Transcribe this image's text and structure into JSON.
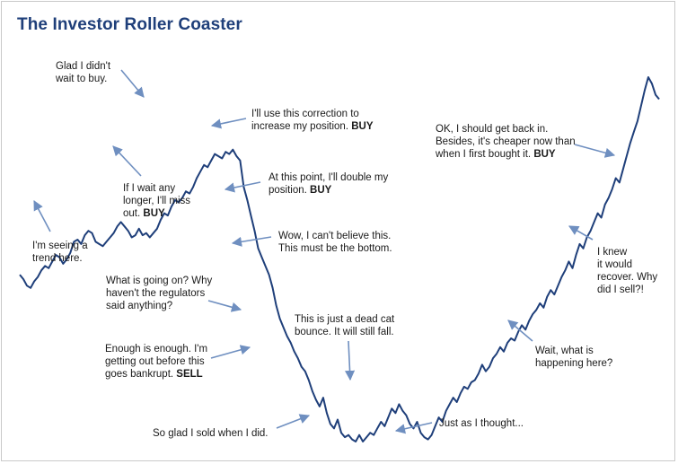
{
  "chart_data": {
    "type": "line",
    "title": "The Investor Roller Coaster",
    "xlabel": "",
    "ylabel": "",
    "grid": false,
    "legend": "none",
    "colors": {
      "title": "#1f3f7a",
      "line": "#1f3f7a",
      "arrow": "#6f8fc0",
      "text": "#1a1a1a"
    },
    "y_relative_level": [
      0.78,
      0.76,
      0.73,
      0.72,
      0.75,
      0.77,
      0.8,
      0.82,
      0.81,
      0.84,
      0.87,
      0.86,
      0.83,
      0.85,
      0.88,
      0.93,
      0.94,
      0.92,
      0.96,
      0.98,
      0.97,
      0.93,
      0.92,
      0.91,
      0.93,
      0.95,
      0.97,
      1.0,
      1.02,
      1.0,
      0.98,
      0.95,
      0.96,
      0.99,
      0.96,
      0.97,
      0.95,
      0.97,
      0.99,
      1.03,
      1.06,
      1.05,
      1.09,
      1.12,
      1.11,
      1.13,
      1.16,
      1.15,
      1.18,
      1.22,
      1.25,
      1.28,
      1.27,
      1.3,
      1.33,
      1.32,
      1.31,
      1.34,
      1.33,
      1.35,
      1.32,
      1.3,
      1.18,
      1.12,
      1.05,
      0.98,
      0.9,
      0.86,
      0.82,
      0.78,
      0.72,
      0.64,
      0.58,
      0.54,
      0.5,
      0.47,
      0.43,
      0.4,
      0.36,
      0.34,
      0.3,
      0.25,
      0.21,
      0.18,
      0.22,
      0.15,
      0.1,
      0.08,
      0.12,
      0.06,
      0.04,
      0.05,
      0.03,
      0.02,
      0.05,
      0.02,
      0.04,
      0.06,
      0.05,
      0.08,
      0.11,
      0.09,
      0.13,
      0.17,
      0.15,
      0.19,
      0.16,
      0.14,
      0.1,
      0.08,
      0.11,
      0.06,
      0.04,
      0.03,
      0.05,
      0.09,
      0.13,
      0.11,
      0.16,
      0.19,
      0.22,
      0.2,
      0.24,
      0.27,
      0.26,
      0.29,
      0.3,
      0.33,
      0.37,
      0.34,
      0.36,
      0.4,
      0.42,
      0.45,
      0.43,
      0.47,
      0.49,
      0.48,
      0.52,
      0.55,
      0.53,
      0.57,
      0.6,
      0.62,
      0.65,
      0.63,
      0.68,
      0.71,
      0.69,
      0.73,
      0.77,
      0.8,
      0.84,
      0.81,
      0.87,
      0.92,
      0.9,
      0.95,
      0.98,
      1.02,
      1.06,
      1.04,
      1.1,
      1.13,
      1.17,
      1.22,
      1.2,
      1.26,
      1.32,
      1.38,
      1.43,
      1.48,
      1.55,
      1.62,
      1.68,
      1.65,
      1.6,
      1.58
    ]
  },
  "annotations": [
    {
      "key": "trend",
      "lines": [
        [
          "I'm seeing a",
          ""
        ],
        [
          "trend here.",
          ""
        ]
      ]
    },
    {
      "key": "missout",
      "lines": [
        [
          "If I wait any",
          ""
        ],
        [
          "longer, I'll miss",
          ""
        ],
        [
          "out.  ",
          "BUY"
        ]
      ]
    },
    {
      "key": "glad",
      "lines": [
        [
          "Glad I didn't",
          ""
        ],
        [
          "wait to buy.",
          ""
        ]
      ]
    },
    {
      "key": "correction",
      "lines": [
        [
          "I'll use this correction to",
          ""
        ],
        [
          "increase my position.  ",
          "BUY"
        ]
      ]
    },
    {
      "key": "double",
      "lines": [
        [
          "At this point, I'll double my",
          ""
        ],
        [
          "position.  ",
          "BUY"
        ]
      ]
    },
    {
      "key": "bottom",
      "lines": [
        [
          "Wow, I can't believe this.",
          ""
        ],
        [
          "This must be the bottom.",
          ""
        ]
      ]
    },
    {
      "key": "regulators",
      "lines": [
        [
          "What is going on? Why",
          ""
        ],
        [
          "haven't the regulators",
          ""
        ],
        [
          "said anything?",
          ""
        ]
      ]
    },
    {
      "key": "enough",
      "lines": [
        [
          "Enough is enough. I'm",
          ""
        ],
        [
          "getting out before this",
          ""
        ],
        [
          "goes bankrupt.  ",
          "SELL"
        ]
      ]
    },
    {
      "key": "deadcat",
      "lines": [
        [
          "This is just a dead cat",
          ""
        ],
        [
          "bounce. It will still fall.",
          ""
        ]
      ]
    },
    {
      "key": "gladsold",
      "lines": [
        [
          "So glad I sold when I did.",
          ""
        ]
      ]
    },
    {
      "key": "justas",
      "lines": [
        [
          "Just as I thought...",
          ""
        ]
      ]
    },
    {
      "key": "wait",
      "lines": [
        [
          "Wait, what is",
          ""
        ],
        [
          "happening here?",
          ""
        ]
      ]
    },
    {
      "key": "knew",
      "lines": [
        [
          "I knew",
          ""
        ],
        [
          "it would",
          ""
        ],
        [
          "recover. Why",
          ""
        ],
        [
          "did I sell?!",
          ""
        ]
      ]
    },
    {
      "key": "getback",
      "lines": [
        [
          "OK, I should get back in.",
          ""
        ],
        [
          "Besides, it's cheaper now than",
          ""
        ],
        [
          "when I first bought it.  ",
          "BUY"
        ]
      ]
    }
  ]
}
